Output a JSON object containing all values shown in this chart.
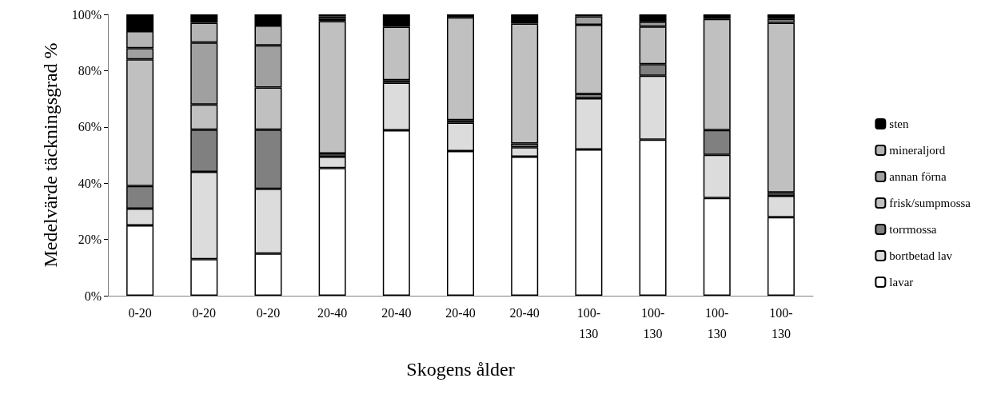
{
  "chart_data": {
    "type": "bar",
    "stacked": true,
    "xlabel": "Skogens ålder",
    "ylabel": "Medelvärde täckningsgrad %",
    "categories": [
      "0-20",
      "0-20",
      "0-20",
      "20-40",
      "20-40",
      "20-40",
      "20-40",
      "100-130",
      "100-130",
      "100-130",
      "100-130"
    ],
    "series": [
      {
        "name": "lavar",
        "color": "#ffffff",
        "values": [
          25,
          13,
          15,
          45.4,
          58.8,
          51.4,
          49.4,
          52,
          55.5,
          34.7,
          27.9
        ]
      },
      {
        "name": "bortbetad lav",
        "color": "#dcdcdc",
        "values": [
          6,
          31,
          23,
          4,
          16.9,
          10.1,
          3.4,
          18.2,
          22.7,
          15.4,
          7.6
        ]
      },
      {
        "name": "torrmossa",
        "color": "#808080",
        "values": [
          8,
          15,
          21,
          1.2,
          0.9,
          0.9,
          1.3,
          1.5,
          4.1,
          8.8,
          1.2
        ]
      },
      {
        "name": "frisk/sumpmossa",
        "color": "#c0c0c0",
        "values": [
          45,
          9,
          15,
          47,
          19,
          36.5,
          42.6,
          24.6,
          13.4,
          39.5,
          60.3
        ]
      },
      {
        "name": "annan förna",
        "color": "#a0a0a0",
        "values": [
          4,
          22,
          15,
          0.8,
          null,
          null,
          null,
          3,
          1.7,
          null,
          1.4
        ]
      },
      {
        "name": "mineraljord",
        "color": "#b4b4b4",
        "values": [
          6,
          7,
          7,
          0.9,
          null,
          null,
          null,
          null,
          null,
          null,
          null
        ]
      },
      {
        "name": "sten",
        "color": "#000000",
        "values": [
          6,
          3,
          4,
          0.7,
          4.4,
          1.1,
          3.3,
          0.7,
          2.6,
          1.6,
          1.6
        ]
      }
    ],
    "ylim": [
      0,
      100
    ],
    "yticks": [
      {
        "value": 0,
        "label": "0%"
      },
      {
        "value": 20,
        "label": "20%"
      },
      {
        "value": 40,
        "label": "40%"
      },
      {
        "value": 60,
        "label": "60%"
      },
      {
        "value": 80,
        "label": "80%"
      },
      {
        "value": 100,
        "label": "100%"
      }
    ],
    "grid": false,
    "legend": "right"
  }
}
